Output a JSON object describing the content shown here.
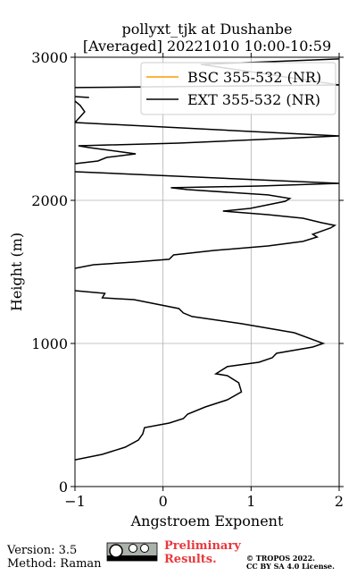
{
  "chart_data": {
    "type": "line",
    "title": "pollyxt_tjk at Dushanbe",
    "subtitle": "[Averaged] 20221010 10:00-10:59",
    "xlabel": "Angstroem Exponent",
    "ylabel": "Height (m)",
    "xlim": [
      -1,
      2
    ],
    "xticks": [
      {
        "value": -1,
        "label": "−1"
      },
      0,
      1,
      2
    ],
    "ylim": [
      0,
      3000
    ],
    "yticks": [
      0,
      1000,
      2000,
      3000
    ],
    "grid": true,
    "legend": "upper right",
    "series": [
      {
        "name": "BSC 355-532 (NR)",
        "color": "#ff9900",
        "x": [],
        "y": []
      },
      {
        "name": "EXT 355-532 (NR)",
        "color": "#000000",
        "x": [
          -1.0,
          -0.69,
          -0.43,
          -0.28,
          -0.23,
          -0.21,
          0.07,
          0.23,
          0.28,
          0.48,
          0.73,
          0.89,
          0.86,
          0.73,
          0.6,
          0.73,
          1.09,
          1.24,
          1.29,
          1.7,
          1.82,
          1.49,
          0.89,
          0.33,
          0.23,
          0.18,
          -0.33,
          -0.69,
          -0.66,
          -1.0,
          null,
          -1.0,
          -0.79,
          -0.33,
          0.07,
          0.12,
          0.58,
          1.19,
          1.59,
          1.75,
          1.7,
          1.9,
          1.95,
          1.8,
          1.59,
          1.19,
          0.68,
          0.99,
          1.39,
          1.44,
          1.19,
          0.28,
          0.09,
          1.09,
          2.0,
          -1.0,
          null,
          -1.0,
          -0.74,
          -0.64,
          -0.31,
          -0.84,
          -0.96,
          0.18,
          2.0,
          -1.0,
          -0.89,
          -0.94,
          -1.0,
          null,
          -0.84,
          -1.0,
          null,
          -1.0,
          0.99,
          2.0,
          0.43,
          2.0
        ],
        "y": [
          187,
          225,
          275,
          325,
          369,
          412,
          444,
          475,
          506,
          556,
          606,
          662,
          725,
          775,
          788,
          838,
          869,
          900,
          931,
          975,
          1000,
          1075,
          1138,
          1188,
          1213,
          1244,
          1306,
          1319,
          1350,
          1369,
          null,
          1525,
          1550,
          1569,
          1588,
          1619,
          1650,
          1681,
          1713,
          1744,
          1763,
          1806,
          1825,
          1844,
          1875,
          1900,
          1925,
          1944,
          1994,
          2013,
          2038,
          2075,
          2088,
          2100,
          2119,
          2200,
          null,
          2256,
          2275,
          2300,
          2325,
          2369,
          2381,
          2400,
          2450,
          2544,
          2619,
          2663,
          2694,
          null,
          2719,
          2725,
          null,
          2788,
          2800,
          2806,
          2950,
          2988
        ]
      }
    ]
  },
  "footer": {
    "version": "Version: 3.5",
    "method": "Method: Raman",
    "notice": "Preliminary Results.",
    "copyright": "© TROPOS 2022.",
    "license": "CC BY SA 4.0 License."
  }
}
